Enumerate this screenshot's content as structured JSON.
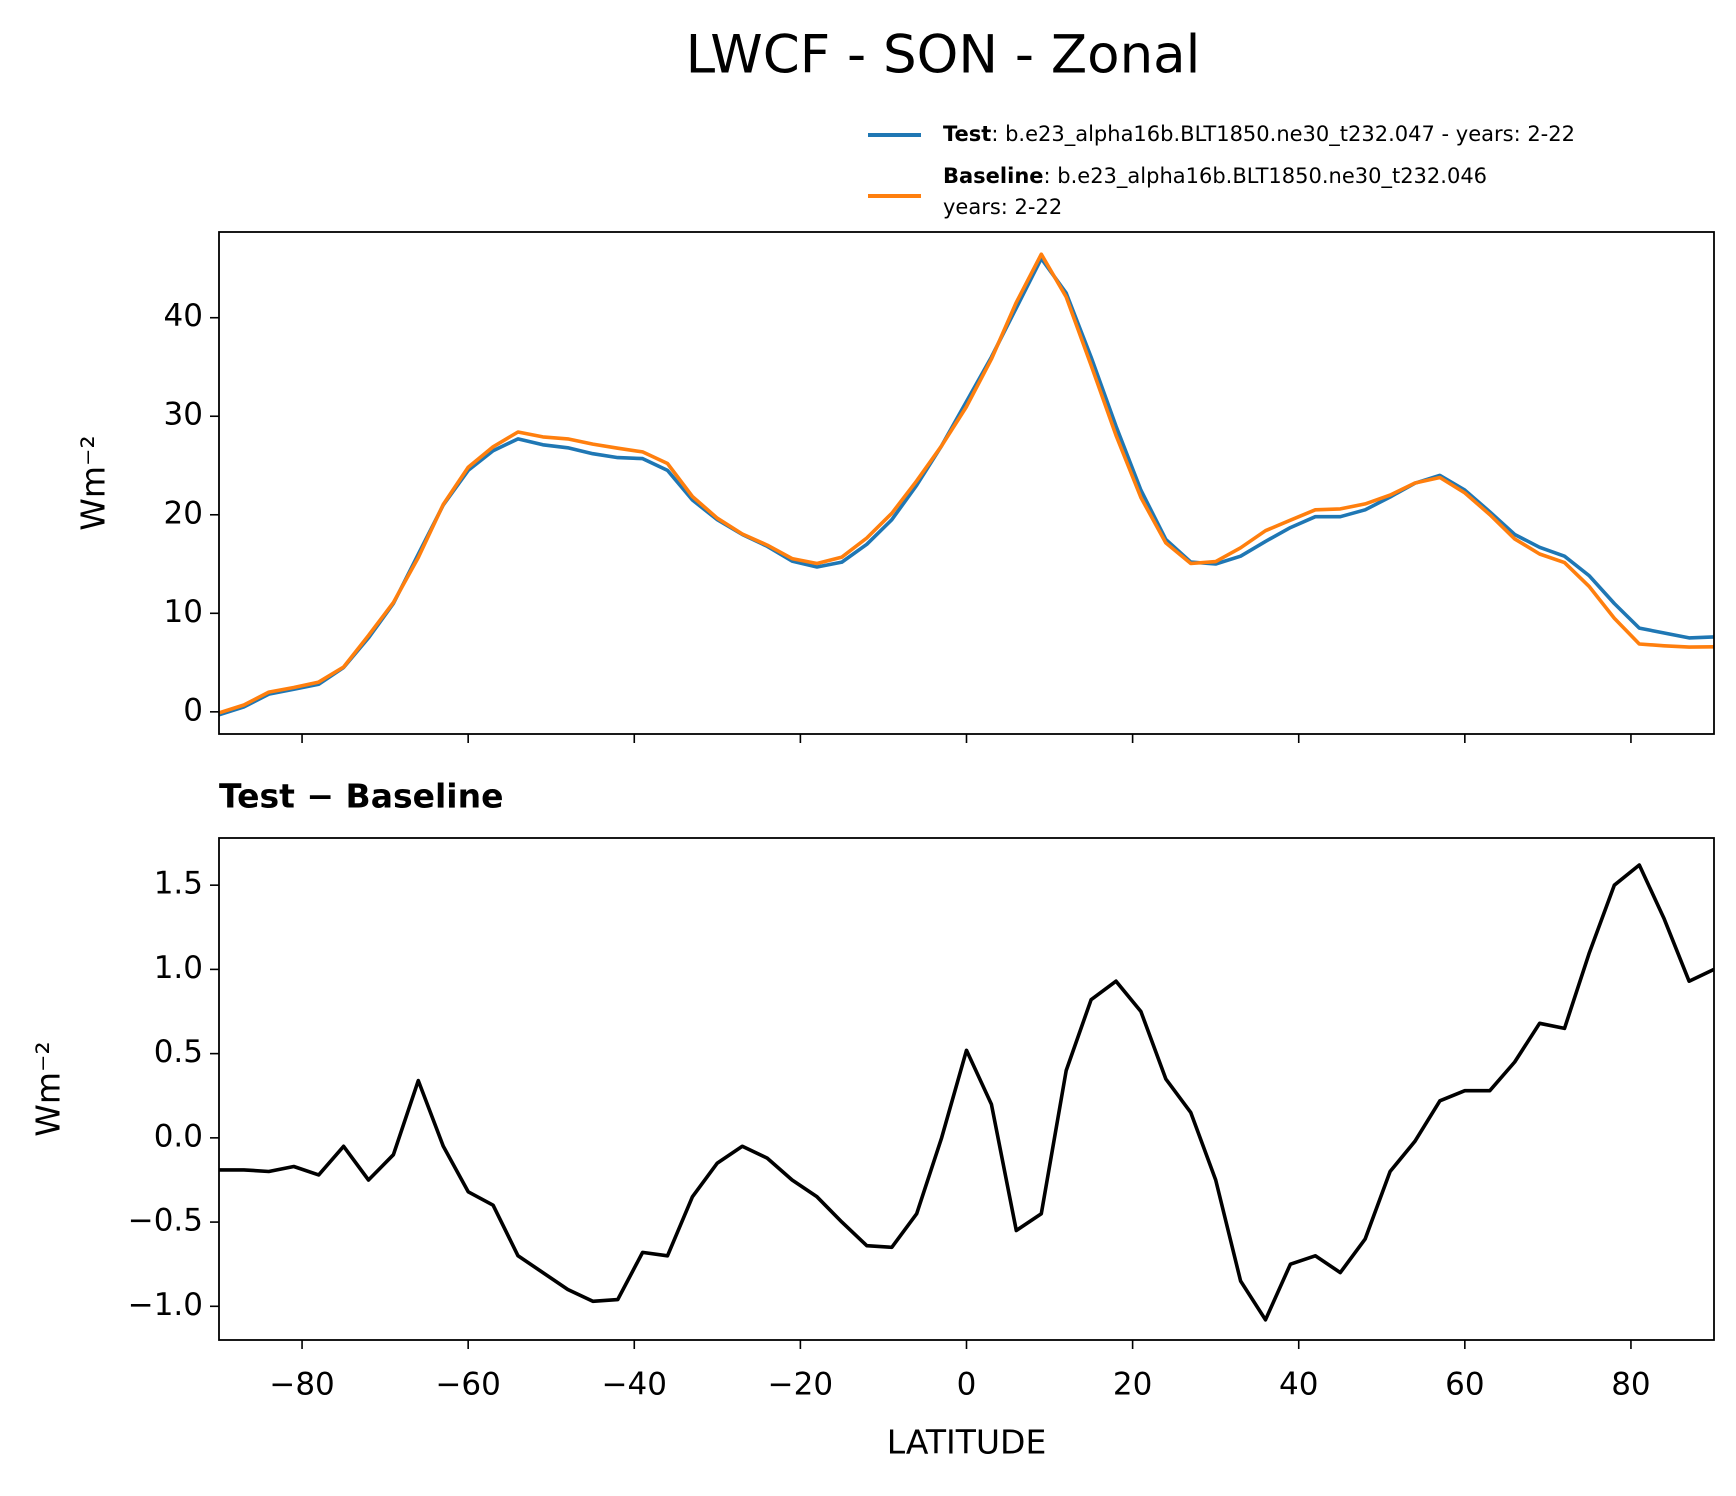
{
  "title": "LWCF - SON - Zonal",
  "chart_data": [
    {
      "type": "line",
      "ylabel": "Wm⁻²",
      "x": [
        -90,
        -87,
        -84,
        -81,
        -78,
        -75,
        -72,
        -69,
        -66,
        -63,
        -60,
        -57,
        -54,
        -51,
        -48,
        -45,
        -42,
        -39,
        -36,
        -33,
        -30,
        -27,
        -24,
        -21,
        -18,
        -15,
        -12,
        -9,
        -6,
        -3,
        0,
        3,
        6,
        9,
        12,
        15,
        18,
        21,
        24,
        27,
        30,
        33,
        36,
        39,
        42,
        45,
        48,
        51,
        54,
        57,
        60,
        63,
        66,
        69,
        72,
        75,
        78,
        81,
        84,
        87,
        90
      ],
      "series": [
        {
          "name": "Test",
          "description": [
            ": b.e23_alpha16b.BLT1850.ne30_t232.047 - years: 2-22"
          ],
          "color": "#1f77b4",
          "values": [
            -0.3,
            0.5,
            1.8,
            2.3,
            2.8,
            4.5,
            7.5,
            11,
            16,
            21,
            24.5,
            26.5,
            27.7,
            27.1,
            26.8,
            26.2,
            25.8,
            25.7,
            24.5,
            21.5,
            19.5,
            18,
            16.8,
            15.3,
            14.7,
            15.2,
            17,
            19.5,
            23,
            27,
            31.5,
            36,
            41,
            46,
            42.5,
            36,
            29,
            22.5,
            17.5,
            15.2,
            15,
            15.8,
            17.3,
            18.7,
            19.8,
            19.8,
            20.5,
            21.8,
            23.2,
            24,
            22.5,
            20.3,
            18,
            16.7,
            15.8,
            13.8,
            11,
            8.5,
            8,
            7.5,
            7.6
          ]
        },
        {
          "name": "Baseline",
          "description": [
            ": b.e23_alpha16b.BLT1850.ne30_t232.046",
            "years: 2-22"
          ],
          "color": "#ff7f0e",
          "values": [
            -0.11,
            0.69,
            2.0,
            2.47,
            3.02,
            4.55,
            7.75,
            11.1,
            15.66,
            21.05,
            24.82,
            26.9,
            28.4,
            27.9,
            27.7,
            27.17,
            26.76,
            26.38,
            25.2,
            21.85,
            19.65,
            18.05,
            16.92,
            15.55,
            15.05,
            15.7,
            17.64,
            20.15,
            23.45,
            27,
            30.98,
            35.8,
            41.55,
            46.45,
            42.1,
            35.18,
            28.07,
            21.75,
            17.15,
            15.05,
            15.25,
            16.65,
            18.38,
            19.45,
            20.5,
            20.6,
            21.1,
            22.0,
            23.22,
            23.78,
            22.22,
            20.02,
            17.55,
            16.02,
            15.15,
            12.7,
            9.5,
            6.88,
            6.7,
            6.57,
            6.6
          ]
        }
      ],
      "xlim": [
        -90,
        90
      ],
      "xticks": [
        -80,
        -60,
        -40,
        -20,
        0,
        20,
        40,
        60,
        80
      ],
      "show_xtick_labels": false,
      "ylim": [
        -2.25,
        48.7
      ],
      "yticks": [
        0,
        10,
        20,
        30,
        40
      ]
    },
    {
      "type": "line",
      "title": "Test − Baseline",
      "ylabel": "Wm⁻²",
      "xlabel": "LATITUDE",
      "x": [
        -90,
        -87,
        -84,
        -81,
        -78,
        -75,
        -72,
        -69,
        -66,
        -63,
        -60,
        -57,
        -54,
        -51,
        -48,
        -45,
        -42,
        -39,
        -36,
        -33,
        -30,
        -27,
        -24,
        -21,
        -18,
        -15,
        -12,
        -9,
        -6,
        -3,
        0,
        3,
        6,
        9,
        12,
        15,
        18,
        21,
        24,
        27,
        30,
        33,
        36,
        39,
        42,
        45,
        48,
        51,
        54,
        57,
        60,
        63,
        66,
        69,
        72,
        75,
        78,
        81,
        84,
        87,
        90
      ],
      "series": [
        {
          "color": "#000000",
          "values": [
            -0.19,
            -0.19,
            -0.2,
            -0.17,
            -0.22,
            -0.05,
            -0.25,
            -0.1,
            0.34,
            -0.05,
            -0.32,
            -0.4,
            -0.7,
            -0.8,
            -0.9,
            -0.97,
            -0.96,
            -0.68,
            -0.7,
            -0.35,
            -0.15,
            -0.05,
            -0.12,
            -0.25,
            -0.35,
            -0.5,
            -0.64,
            -0.65,
            -0.45,
            0.0,
            0.52,
            0.2,
            -0.55,
            -0.45,
            0.4,
            0.82,
            0.93,
            0.75,
            0.35,
            0.15,
            -0.25,
            -0.85,
            -1.08,
            -0.75,
            -0.7,
            -0.8,
            -0.6,
            -0.2,
            -0.02,
            0.22,
            0.28,
            0.28,
            0.45,
            0.68,
            0.65,
            1.1,
            1.5,
            1.62,
            1.3,
            0.93,
            1.0
          ]
        }
      ],
      "xlim": [
        -90,
        90
      ],
      "xticks": [
        {
          "value": -80,
          "label": "−80"
        },
        {
          "value": -60,
          "label": "−60"
        },
        {
          "value": -40,
          "label": "−40"
        },
        {
          "value": -20,
          "label": "−20"
        },
        0,
        20,
        40,
        60,
        80
      ],
      "show_xtick_labels": true,
      "ylim": [
        -1.2,
        1.78
      ],
      "yticks": [
        {
          "value": -1,
          "label": "−1.0"
        },
        {
          "value": -0.5,
          "label": "−0.5"
        },
        {
          "value": 0,
          "label": "0.0"
        },
        0.5,
        {
          "value": 1,
          "label": "1.0"
        },
        1.5
      ]
    }
  ]
}
